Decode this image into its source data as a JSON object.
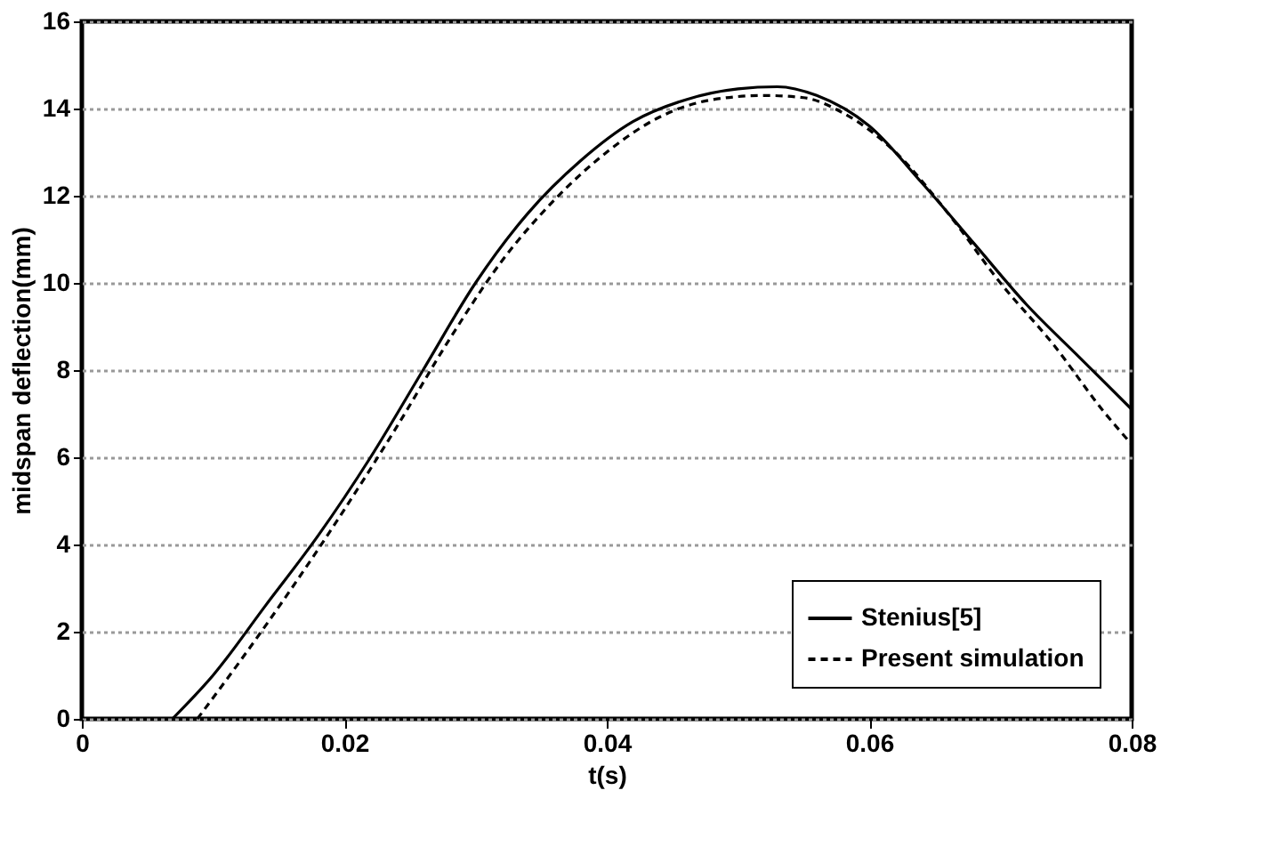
{
  "chart_data": {
    "type": "line",
    "xlabel": "t(s)",
    "ylabel": "midspan deflection(mm)",
    "xlim": [
      0,
      0.08
    ],
    "xticks": [
      0,
      0.02,
      0.04,
      0.06,
      0.08
    ],
    "ylim": [
      0,
      16
    ],
    "yticks": [
      0,
      2,
      4,
      6,
      8,
      10,
      12,
      14,
      16
    ],
    "grid": "y",
    "legend": "bottom right",
    "marker": "none",
    "series": [
      {
        "name": "Stenius[5]",
        "color": "#000000",
        "line_style": "solid",
        "x": [
          0.0069,
          0.01,
          0.014,
          0.018,
          0.022,
          0.026,
          0.03,
          0.034,
          0.038,
          0.042,
          0.046,
          0.05,
          0.053,
          0.056,
          0.06,
          0.064,
          0.068,
          0.072,
          0.076,
          0.08
        ],
        "values": [
          0,
          1.0,
          2.6,
          4.2,
          6.0,
          8.0,
          10.0,
          11.6,
          12.8,
          13.7,
          14.2,
          14.45,
          14.5,
          14.3,
          13.6,
          12.3,
          10.9,
          9.5,
          8.3,
          7.1
        ]
      },
      {
        "name": "Present simulation",
        "color": "#000000",
        "line_style": "dashed",
        "x": [
          0.0088,
          0.012,
          0.016,
          0.02,
          0.024,
          0.028,
          0.032,
          0.036,
          0.04,
          0.044,
          0.048,
          0.052,
          0.055,
          0.058,
          0.062,
          0.066,
          0.07,
          0.074,
          0.078,
          0.08
        ],
        "values": [
          0,
          1.3,
          3.0,
          4.8,
          6.7,
          8.7,
          10.5,
          11.9,
          13.0,
          13.8,
          14.2,
          14.3,
          14.25,
          13.9,
          13.0,
          11.6,
          10.0,
          8.6,
          7.0,
          6.3
        ]
      }
    ]
  }
}
